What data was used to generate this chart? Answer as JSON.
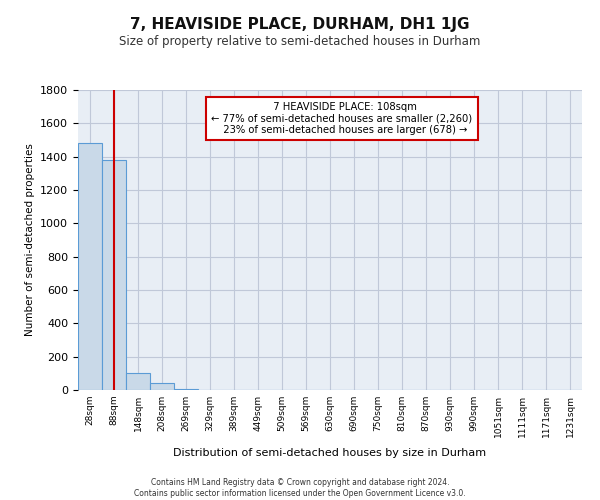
{
  "title": "7, HEAVISIDE PLACE, DURHAM, DH1 1JG",
  "subtitle": "Size of property relative to semi-detached houses in Durham",
  "xlabel": "Distribution of semi-detached houses by size in Durham",
  "ylabel": "Number of semi-detached properties",
  "footer_line1": "Contains HM Land Registry data © Crown copyright and database right 2024.",
  "footer_line2": "Contains public sector information licensed under the Open Government Licence v3.0.",
  "property_label": "7 HEAVISIDE PLACE: 108sqm",
  "pct_smaller": 77,
  "count_smaller": 2260,
  "pct_larger": 23,
  "count_larger": 678,
  "bar_color": "#c9d9e8",
  "bar_edge_color": "#5b9bd5",
  "line_color": "#cc0000",
  "annotation_box_color": "#ffffff",
  "annotation_box_edge": "#cc0000",
  "grid_color": "#c0c8d8",
  "background_color": "#e8eef5",
  "ylim": [
    0,
    1800
  ],
  "yticks": [
    0,
    200,
    400,
    600,
    800,
    1000,
    1200,
    1400,
    1600,
    1800
  ],
  "bin_labels": [
    "28sqm",
    "88sqm",
    "148sqm",
    "208sqm",
    "269sqm",
    "329sqm",
    "389sqm",
    "449sqm",
    "509sqm",
    "569sqm",
    "630sqm",
    "690sqm",
    "750sqm",
    "810sqm",
    "870sqm",
    "930sqm",
    "990sqm",
    "1051sqm",
    "1111sqm",
    "1171sqm",
    "1231sqm"
  ],
  "bar_values": [
    1480,
    1380,
    100,
    40,
    8,
    3,
    2,
    1,
    1,
    0,
    0,
    0,
    0,
    0,
    0,
    0,
    0,
    0,
    0,
    0,
    0
  ],
  "red_line_x": 1.0
}
